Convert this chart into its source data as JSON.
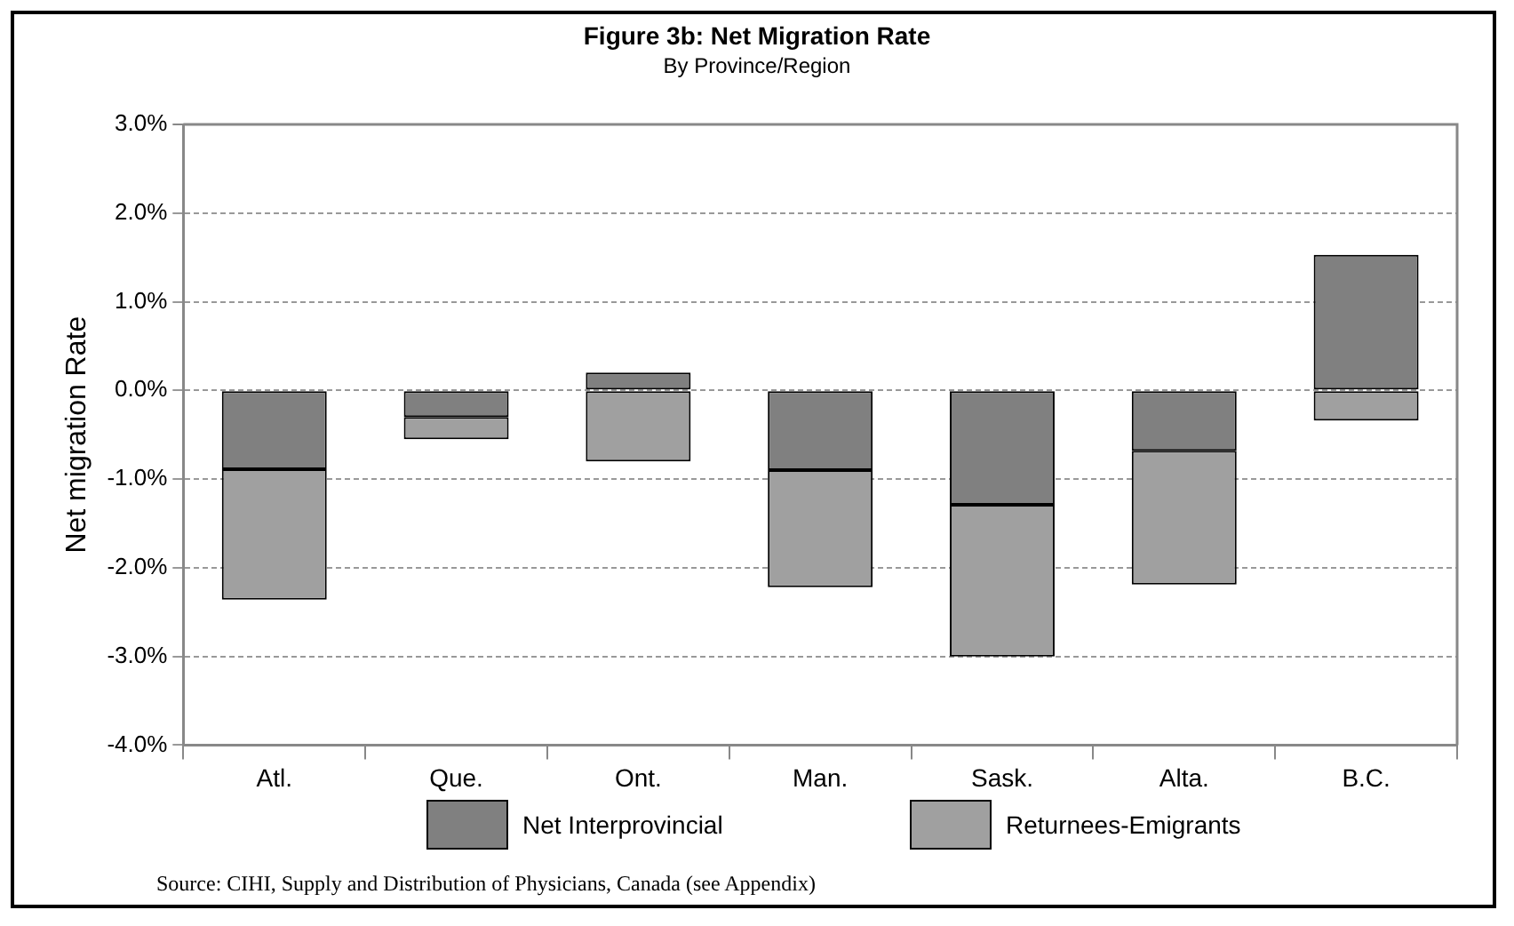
{
  "chart_data": {
    "type": "bar",
    "title": "Figure 3b: Net Migration Rate",
    "subtitle": "By Province/Region",
    "ylabel": "Net migration Rate",
    "categories": [
      "Atl.",
      "Que.",
      "Ont.",
      "Man.",
      "Sask.",
      "Alta.",
      "B.C."
    ],
    "series": [
      {
        "name": "Net Interprovincial",
        "color": "#808080",
        "values": [
          -0.89,
          -0.3,
          0.2,
          -0.9,
          -1.29,
          -0.68,
          1.53
        ]
      },
      {
        "name": "Returnees-Emigrants",
        "color": "#a0a0a0",
        "values": [
          -1.47,
          -0.25,
          -0.8,
          -1.32,
          -1.71,
          -1.51,
          -0.34
        ]
      }
    ],
    "stacked": true,
    "ylim": [
      -4,
      3
    ],
    "yticks": [
      {
        "value": -4,
        "label": "-4.0%"
      },
      {
        "value": -3,
        "label": "-3.0%"
      },
      {
        "value": -2,
        "label": "-2.0%"
      },
      {
        "value": -1,
        "label": "-1.0%"
      },
      {
        "value": 0,
        "label": "0.0%"
      },
      {
        "value": 1,
        "label": "1.0%"
      },
      {
        "value": 2,
        "label": "2.0%"
      },
      {
        "value": 3,
        "label": "3.0%"
      }
    ],
    "grid": "y",
    "line_style": "dashed",
    "legend": "bottom",
    "annotations": [
      "Source: CIHI, Supply and Distribution of Physicians, Canada (see Appendix)"
    ]
  }
}
